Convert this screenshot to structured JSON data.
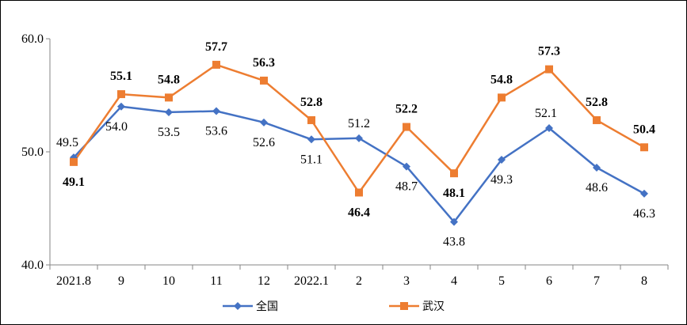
{
  "chart_data": {
    "type": "line",
    "categories": [
      "2021.8",
      "9",
      "10",
      "11",
      "12",
      "2022.1",
      "2",
      "3",
      "4",
      "5",
      "6",
      "7",
      "8"
    ],
    "ylim": [
      40.0,
      60.0
    ],
    "y_ticks": [
      "40.0",
      "50.0",
      "60.0"
    ],
    "grid": false,
    "legend_position": "bottom-center",
    "series": [
      {
        "name": "全国",
        "color": "#4472C4",
        "marker": "diamond",
        "values": [
          49.5,
          54.0,
          53.5,
          53.6,
          52.6,
          51.1,
          51.2,
          48.7,
          43.8,
          49.3,
          52.1,
          48.6,
          46.3
        ],
        "labels": [
          "49.5",
          "54.0",
          "53.5",
          "53.6",
          "52.6",
          "51.1",
          "51.2",
          "48.7",
          "43.8",
          "49.3",
          "52.1",
          "48.6",
          "46.3"
        ]
      },
      {
        "name": "武汉",
        "color": "#ED7D31",
        "marker": "square",
        "values": [
          49.1,
          55.1,
          54.8,
          57.7,
          56.3,
          52.8,
          46.4,
          52.2,
          48.1,
          54.8,
          57.3,
          52.8,
          50.4
        ],
        "labels": [
          "49.1",
          "55.1",
          "54.8",
          "57.7",
          "56.3",
          "52.8",
          "46.4",
          "52.2",
          "48.1",
          "54.8",
          "57.3",
          "52.8",
          "50.4"
        ]
      }
    ]
  }
}
